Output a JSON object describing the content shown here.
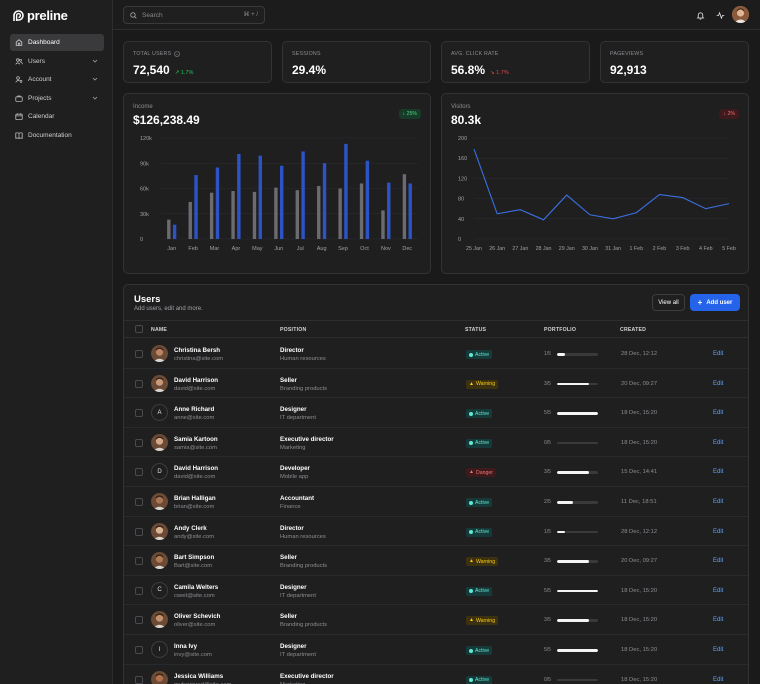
{
  "app": {
    "brand": "preline"
  },
  "sidebar": {
    "items": [
      {
        "label": "Dashboard",
        "icon": "home-icon",
        "active": true,
        "chevron": false
      },
      {
        "label": "Users",
        "icon": "users-icon",
        "active": false,
        "chevron": true
      },
      {
        "label": "Account",
        "icon": "user-cog-icon",
        "active": false,
        "chevron": true
      },
      {
        "label": "Projects",
        "icon": "briefcase-icon",
        "active": false,
        "chevron": true
      },
      {
        "label": "Calendar",
        "icon": "calendar-icon",
        "active": false,
        "chevron": false
      },
      {
        "label": "Documentation",
        "icon": "book-icon",
        "active": false,
        "chevron": false
      }
    ]
  },
  "header": {
    "search_placeholder": "Search",
    "search_shortcut": "⌘ + /"
  },
  "stats": [
    {
      "title": "Total users",
      "value": "72,540",
      "delta": "1.7%",
      "trend": "up",
      "info": true
    },
    {
      "title": "Sessions",
      "value": "29.4%",
      "delta": "",
      "trend": "",
      "info": false
    },
    {
      "title": "Avg. Click Rate",
      "value": "56.8%",
      "delta": "1.7%",
      "trend": "down",
      "info": false
    },
    {
      "title": "Pageviews",
      "value": "92,913",
      "delta": "",
      "trend": "",
      "info": false
    }
  ],
  "income": {
    "title": "Income",
    "value": "$126,238.49",
    "badge": "25%",
    "badge_trend": "up"
  },
  "visitors": {
    "title": "Visitors",
    "value": "80.3k",
    "badge": "2%",
    "badge_trend": "down"
  },
  "chart_data": [
    {
      "type": "bar",
      "categories": [
        "Jan",
        "Feb",
        "Mar",
        "Apr",
        "May",
        "Jun",
        "Jul",
        "Aug",
        "Sep",
        "Oct",
        "Nov",
        "Dec"
      ],
      "series": [
        {
          "values": [
            23000,
            44000,
            55000,
            57000,
            56000,
            61000,
            58000,
            63000,
            60000,
            66000,
            34000,
            77000
          ],
          "color": "#6b6b70"
        },
        {
          "values": [
            17000,
            76000,
            85000,
            101000,
            99000,
            87000,
            104000,
            90000,
            113000,
            93000,
            67000,
            66000
          ],
          "color": "#2c54c6"
        }
      ],
      "yticks": [
        "120k",
        "90k",
        "60k",
        "30k",
        "0"
      ],
      "ylim": [
        0,
        120000
      ]
    },
    {
      "type": "line",
      "x": [
        "25 Jan",
        "26 Jan",
        "27 Jan",
        "28 Jan",
        "29 Jan",
        "30 Jan",
        "31 Jan",
        "1 Feb",
        "2 Feb",
        "3 Feb",
        "4 Feb",
        "5 Feb"
      ],
      "series": [
        {
          "values": [
            178,
            50,
            58,
            38,
            87,
            48,
            40,
            52,
            88,
            82,
            60,
            70
          ],
          "color": "#3b6fe0"
        }
      ],
      "yticks": [
        "200",
        "160",
        "120",
        "80",
        "40",
        "0"
      ],
      "ylim": [
        0,
        200
      ]
    }
  ],
  "users": {
    "title": "Users",
    "subtitle": "Add users, edit and more.",
    "view_all": "View all",
    "add_user": "Add user",
    "columns": {
      "name": "NAME",
      "position": "POSITION",
      "status": "STATUS",
      "portfolio": "PORTFOLIO",
      "created": "CREATED"
    },
    "edit_label": "Edit",
    "rows": [
      {
        "name": "Christina Bersh",
        "email": "christina@site.com",
        "position": "Director",
        "dept": "Human resources",
        "status": "Active",
        "portfolio": "1/5",
        "progress": 0.2,
        "created": "28 Dec, 12:12",
        "avatar": "photo",
        "initial": "",
        "skin": "#b98566"
      },
      {
        "name": "David Harrison",
        "email": "david@site.com",
        "position": "Seller",
        "dept": "Branding products",
        "status": "Warning",
        "portfolio": "3/5",
        "progress": 0.78,
        "created": "20 Dec, 09:27",
        "avatar": "photo",
        "initial": "",
        "skin": "#c99a7a"
      },
      {
        "name": "Anne Richard",
        "email": "anne@site.com",
        "position": "Designer",
        "dept": "IT department",
        "status": "Active",
        "portfolio": "5/5",
        "progress": 1.0,
        "created": "18 Dec, 15:20",
        "avatar": "initial",
        "initial": "A",
        "skin": ""
      },
      {
        "name": "Samia Kartoon",
        "email": "samia@site.com",
        "position": "Executive director",
        "dept": "Marketing",
        "status": "Active",
        "portfolio": "0/5",
        "progress": 0.0,
        "created": "18 Dec, 15:20",
        "avatar": "photo",
        "initial": "",
        "skin": "#d6a889"
      },
      {
        "name": "David Harrison",
        "email": "david@site.com",
        "position": "Developer",
        "dept": "Mobile app",
        "status": "Danger",
        "portfolio": "3/5",
        "progress": 0.78,
        "created": "15 Dec, 14:41",
        "avatar": "initial",
        "initial": "D",
        "skin": ""
      },
      {
        "name": "Brian Halligan",
        "email": "brian@site.com",
        "position": "Accountant",
        "dept": "Finance",
        "status": "Active",
        "portfolio": "2/5",
        "progress": 0.4,
        "created": "11 Dec, 18:51",
        "avatar": "photo",
        "initial": "",
        "skin": "#a87453"
      },
      {
        "name": "Andy Clerk",
        "email": "andy@site.com",
        "position": "Director",
        "dept": "Human resources",
        "status": "Active",
        "portfolio": "1/5",
        "progress": 0.2,
        "created": "28 Dec, 12:12",
        "avatar": "photo",
        "initial": "",
        "skin": "#d9b394"
      },
      {
        "name": "Bart Simpson",
        "email": "Bart@site.com",
        "position": "Seller",
        "dept": "Branding products",
        "status": "Warning",
        "portfolio": "3/5",
        "progress": 0.78,
        "created": "20 Dec, 09:27",
        "avatar": "photo",
        "initial": "",
        "skin": "#b07a55"
      },
      {
        "name": "Camila Welters",
        "email": "cweit@site.com",
        "position": "Designer",
        "dept": "IT department",
        "status": "Active",
        "portfolio": "5/5",
        "progress": 1.0,
        "created": "18 Dec, 15:20",
        "avatar": "initial",
        "initial": "C",
        "skin": ""
      },
      {
        "name": "Oliver Schevich",
        "email": "oliver@site.com",
        "position": "Seller",
        "dept": "Branding products",
        "status": "Warning",
        "portfolio": "3/5",
        "progress": 0.78,
        "created": "18 Dec, 15:20",
        "avatar": "photo",
        "initial": "",
        "skin": "#c48f6a"
      },
      {
        "name": "Inna Ivy",
        "email": "invy@site.com",
        "position": "Designer",
        "dept": "IT department",
        "status": "Active",
        "portfolio": "5/5",
        "progress": 1.0,
        "created": "18 Dec, 15:20",
        "avatar": "initial",
        "initial": "I",
        "skin": ""
      },
      {
        "name": "Jessica Williams",
        "email": "myhairisred@site.com",
        "position": "Executive director",
        "dept": "Marketing",
        "status": "Active",
        "portfolio": "0/5",
        "progress": 0.0,
        "created": "18 Dec, 15:20",
        "avatar": "photo",
        "initial": "",
        "skin": "#b3704e"
      }
    ]
  }
}
